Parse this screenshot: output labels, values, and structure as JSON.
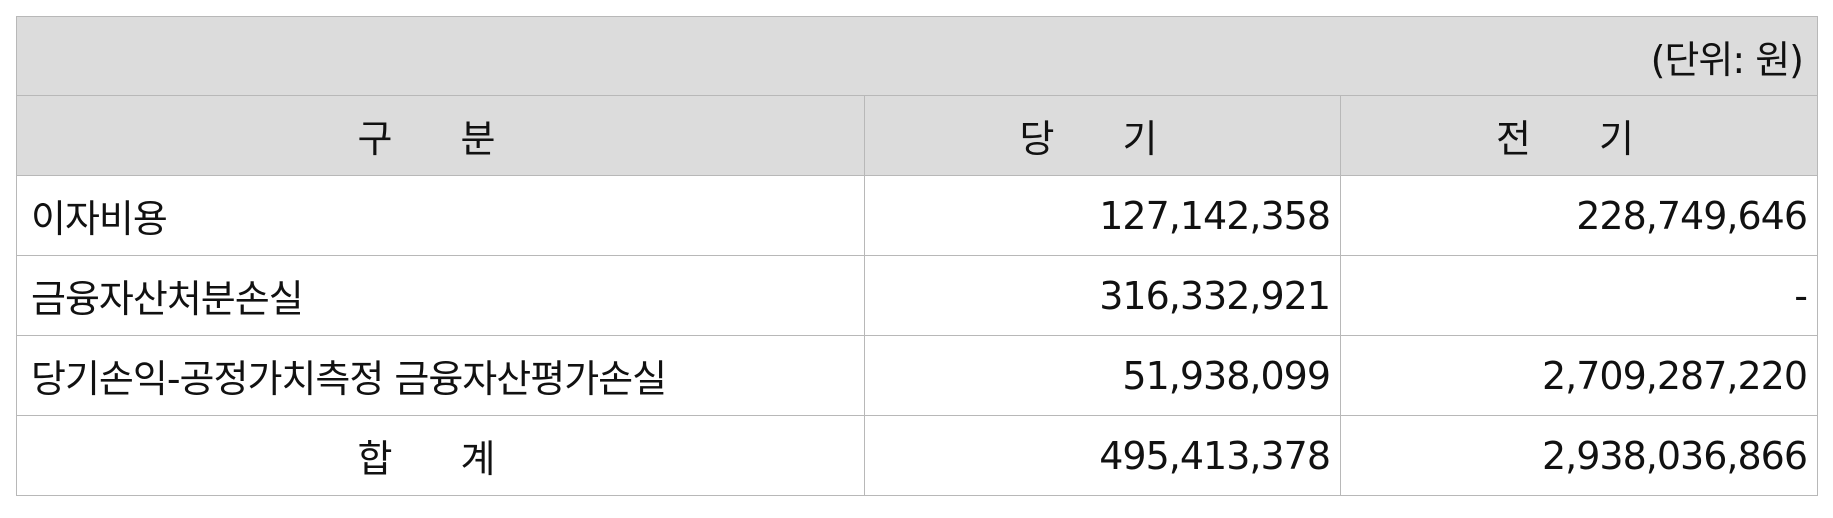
{
  "unit_label": "(단위: 원)",
  "columns": [
    "구 분",
    "당 기",
    "전 기"
  ],
  "rows": [
    {
      "label": "이자비용",
      "current": "127,142,358",
      "previous": "228,749,646"
    },
    {
      "label": "금융자산처분손실",
      "current": "316,332,921",
      "previous": "-"
    },
    {
      "label": "당기손익-공정가치측정 금융자산평가손실",
      "current": "51,938,099",
      "previous": "2,709,287,220"
    }
  ],
  "total": {
    "label": "합 계",
    "current": "495,413,378",
    "previous": "2,938,036,866"
  }
}
